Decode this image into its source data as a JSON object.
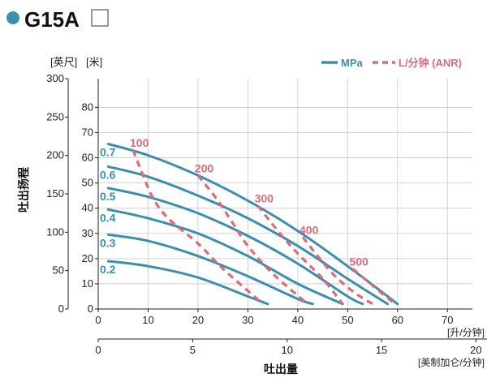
{
  "header": {
    "model": "G15A",
    "dot_color": "#3a8fb0"
  },
  "chart_data": {
    "type": "line",
    "title": "G15A",
    "xlabel": "吐出量",
    "ylabel": "吐出扬程",
    "x_axes": [
      {
        "unit": "[升/分钟]",
        "range": [
          0,
          75
        ],
        "ticks": [
          0,
          10,
          20,
          30,
          40,
          50,
          60,
          70
        ]
      },
      {
        "unit": "[美制加仑/分钟]",
        "range": [
          0,
          19.81
        ],
        "ticks": [
          0,
          5,
          10,
          15,
          20
        ]
      }
    ],
    "y_axes": [
      {
        "unit": "[英尺]",
        "range": [
          0,
          300
        ],
        "ticks": [
          0,
          50,
          100,
          150,
          200,
          250,
          300
        ]
      },
      {
        "unit": "[米]",
        "range": [
          0,
          91.4
        ],
        "ticks": [
          0,
          10,
          20,
          30,
          40,
          50,
          60,
          70,
          80
        ]
      }
    ],
    "grid": true,
    "legend": {
      "position": "top-right",
      "items": [
        {
          "label": "MPa",
          "style": "solid",
          "color": "#3a8fb0"
        },
        {
          "label": "L/分钟 (ANR)",
          "style": "dashed",
          "color": "#e0697a"
        }
      ]
    },
    "pressure_series": [
      {
        "label": "0.7",
        "points": [
          [
            2,
            65.5
          ],
          [
            10,
            61
          ],
          [
            20,
            53
          ],
          [
            30,
            43
          ],
          [
            40,
            31
          ],
          [
            50,
            17
          ],
          [
            60,
            2
          ]
        ]
      },
      {
        "label": "0.6",
        "points": [
          [
            2,
            56.5
          ],
          [
            10,
            52.5
          ],
          [
            20,
            45
          ],
          [
            30,
            36
          ],
          [
            40,
            25
          ],
          [
            50,
            12
          ],
          [
            58,
            2
          ]
        ]
      },
      {
        "label": "0.5",
        "points": [
          [
            2,
            48
          ],
          [
            10,
            44.5
          ],
          [
            20,
            38
          ],
          [
            30,
            29
          ],
          [
            40,
            18
          ],
          [
            50,
            5
          ],
          [
            53,
            2
          ]
        ]
      },
      {
        "label": "0.4",
        "points": [
          [
            2,
            39.5
          ],
          [
            10,
            36
          ],
          [
            20,
            30
          ],
          [
            30,
            21
          ],
          [
            40,
            10
          ],
          [
            49,
            2
          ]
        ]
      },
      {
        "label": "0.3",
        "points": [
          [
            2,
            29.5
          ],
          [
            10,
            27
          ],
          [
            20,
            21
          ],
          [
            30,
            13
          ],
          [
            40,
            4
          ],
          [
            43,
            2
          ]
        ]
      },
      {
        "label": "0.2",
        "points": [
          [
            2,
            19
          ],
          [
            10,
            17
          ],
          [
            20,
            12.5
          ],
          [
            30,
            5
          ],
          [
            34,
            2
          ]
        ]
      }
    ],
    "air_consumption_series": [
      {
        "label": "100",
        "points": [
          [
            7,
            63
          ],
          [
            9,
            53
          ],
          [
            11,
            44
          ],
          [
            14,
            36
          ],
          [
            20,
            26
          ],
          [
            25,
            16
          ],
          [
            33,
            2
          ]
        ]
      },
      {
        "label": "200",
        "points": [
          [
            20,
            53
          ],
          [
            24,
            43
          ],
          [
            27,
            34
          ],
          [
            30,
            25
          ],
          [
            35,
            14
          ],
          [
            42,
            2
          ]
        ]
      },
      {
        "label": "300",
        "points": [
          [
            32,
            41
          ],
          [
            36,
            31
          ],
          [
            40,
            22
          ],
          [
            45,
            12
          ],
          [
            49,
            2
          ]
        ]
      },
      {
        "label": "400",
        "points": [
          [
            41,
            28.5
          ],
          [
            44,
            21
          ],
          [
            47,
            14
          ],
          [
            51,
            7
          ],
          [
            55,
            2
          ]
        ]
      },
      {
        "label": "500",
        "points": [
          [
            51,
            16
          ],
          [
            54,
            11
          ],
          [
            57,
            6
          ],
          [
            59.5,
            2
          ]
        ]
      }
    ]
  }
}
